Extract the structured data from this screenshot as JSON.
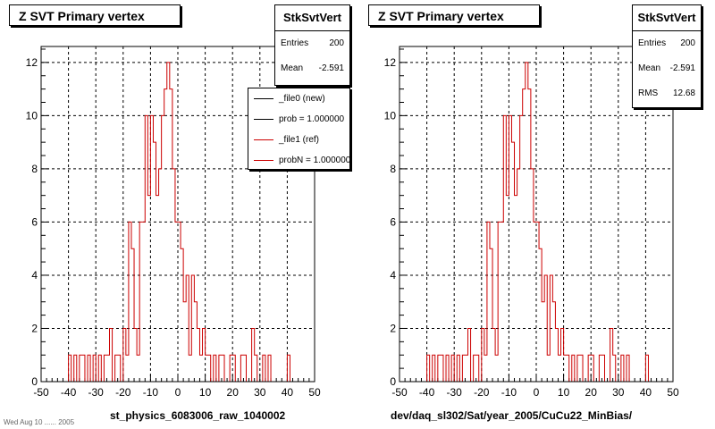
{
  "chart_data": [
    {
      "type": "line",
      "title": "Z SVT Primary vertex",
      "xlabel": "st_physics_6083006_raw_1040002",
      "ylabel": "",
      "xlim": [
        -50,
        50
      ],
      "ylim": [
        0,
        12.6
      ],
      "xticks": [
        "-50",
        "-40",
        "-30",
        "-20",
        "-10",
        "0",
        "10",
        "20",
        "30",
        "40",
        "50"
      ],
      "yticks": [
        "0",
        "2",
        "4",
        "6",
        "8",
        "10",
        "12"
      ],
      "grid": true,
      "stats": {
        "name": "StkSvtVert",
        "entries_label": "Entries",
        "entries": "200",
        "mean_label": "Mean",
        "mean": "-2.591"
      },
      "legend": {
        "placement": "top-right",
        "entries": [
          {
            "label": "_file0 (new)",
            "color": "#000000"
          },
          {
            "label": "prob = 1.000000",
            "color": "#000000"
          },
          {
            "label": "_file1 (ref)",
            "color": "#cc0000"
          },
          {
            "label": "probN = 1.000000",
            "color": "#cc0000"
          }
        ]
      },
      "series": [
        {
          "color": "#cc0000",
          "x": [
            -40,
            -39,
            -38,
            -37,
            -36,
            -35,
            -34,
            -33,
            -32,
            -31,
            -30,
            -29,
            -28,
            -27,
            -26,
            -25,
            -24,
            -23,
            -22,
            -21,
            -20,
            -19,
            -18,
            -17,
            -16,
            -15,
            -14,
            -13,
            -12,
            -11,
            -10,
            -9,
            -8,
            -7,
            -6,
            -5,
            -4,
            -3,
            -2,
            -1,
            0,
            1,
            2,
            3,
            4,
            5,
            6,
            7,
            8,
            9,
            10,
            11,
            12,
            13,
            14,
            15,
            16,
            17,
            18,
            19,
            20,
            21,
            22,
            23,
            24,
            25,
            26,
            27,
            28,
            29,
            30,
            31,
            32,
            33,
            34,
            35,
            36,
            37,
            38,
            39,
            40,
            41,
            42,
            43,
            44,
            45,
            46,
            47,
            48,
            49
          ],
          "values": [
            1,
            0,
            1,
            0,
            1,
            1,
            0,
            1,
            0,
            1,
            0,
            1,
            0,
            1,
            1,
            2,
            0,
            1,
            1,
            0,
            2,
            1,
            6,
            5,
            2,
            1,
            6,
            6,
            10,
            7,
            10,
            9,
            7,
            8,
            10,
            11,
            12,
            11,
            8,
            6,
            6,
            5,
            3,
            4,
            1,
            4,
            3,
            2,
            1,
            2,
            1,
            1,
            0,
            1,
            0,
            1,
            1,
            0,
            0,
            1,
            1,
            0,
            0,
            1,
            1,
            0,
            0,
            2,
            1,
            0,
            0,
            1,
            0,
            1,
            0,
            0,
            0,
            0,
            0,
            0,
            1,
            0,
            0,
            0,
            0,
            0,
            0,
            0,
            0,
            0
          ]
        }
      ]
    },
    {
      "type": "line",
      "title": "Z SVT Primary vertex",
      "xlabel": "dev/daq_sl302/Sat/year_2005/CuCu22_MinBias/",
      "ylabel": "",
      "xlim": [
        -50,
        50
      ],
      "ylim": [
        0,
        12.6
      ],
      "xticks": [
        "-50",
        "-40",
        "-30",
        "-20",
        "-10",
        "0",
        "10",
        "20",
        "30",
        "40",
        "50"
      ],
      "yticks": [
        "0",
        "2",
        "4",
        "6",
        "8",
        "10",
        "12"
      ],
      "grid": true,
      "stats": {
        "name": "StkSvtVert",
        "entries_label": "Entries",
        "entries": "200",
        "mean_label": "Mean",
        "mean": "-2.591",
        "rms_label": "RMS",
        "rms": "12.68"
      },
      "series": [
        {
          "color": "#cc0000",
          "x": [
            -40,
            -39,
            -38,
            -37,
            -36,
            -35,
            -34,
            -33,
            -32,
            -31,
            -30,
            -29,
            -28,
            -27,
            -26,
            -25,
            -24,
            -23,
            -22,
            -21,
            -20,
            -19,
            -18,
            -17,
            -16,
            -15,
            -14,
            -13,
            -12,
            -11,
            -10,
            -9,
            -8,
            -7,
            -6,
            -5,
            -4,
            -3,
            -2,
            -1,
            0,
            1,
            2,
            3,
            4,
            5,
            6,
            7,
            8,
            9,
            10,
            11,
            12,
            13,
            14,
            15,
            16,
            17,
            18,
            19,
            20,
            21,
            22,
            23,
            24,
            25,
            26,
            27,
            28,
            29,
            30,
            31,
            32,
            33,
            34,
            35,
            36,
            37,
            38,
            39,
            40,
            41,
            42,
            43,
            44,
            45,
            46,
            47,
            48,
            49
          ],
          "values": [
            1,
            0,
            1,
            0,
            1,
            1,
            0,
            1,
            0,
            1,
            0,
            1,
            0,
            1,
            1,
            2,
            0,
            1,
            1,
            0,
            2,
            1,
            6,
            5,
            2,
            1,
            6,
            6,
            10,
            7,
            10,
            9,
            7,
            8,
            10,
            11,
            12,
            11,
            8,
            6,
            6,
            5,
            3,
            4,
            1,
            4,
            3,
            2,
            1,
            2,
            1,
            1,
            0,
            1,
            0,
            1,
            1,
            0,
            0,
            1,
            1,
            0,
            0,
            1,
            1,
            0,
            0,
            2,
            1,
            0,
            0,
            1,
            0,
            1,
            0,
            0,
            0,
            0,
            0,
            0,
            1,
            0,
            0,
            0,
            0,
            0,
            0,
            0,
            0,
            0
          ]
        }
      ]
    }
  ],
  "footer_text": "Wed Aug 10 ...... 2005"
}
